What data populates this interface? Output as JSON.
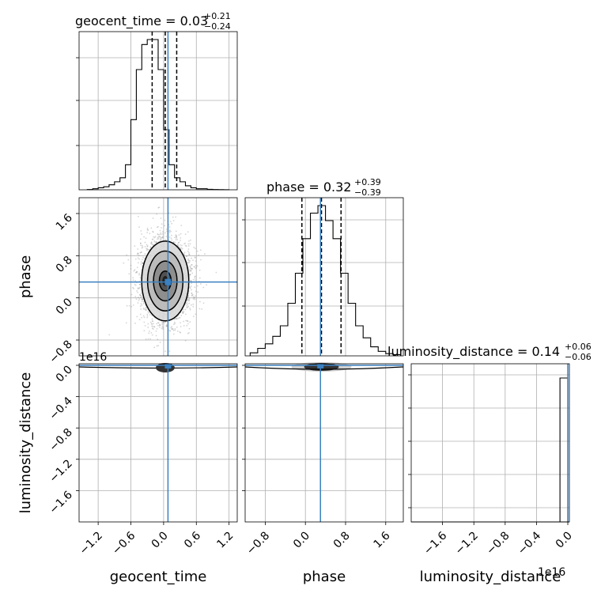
{
  "chart_data": {
    "type": "corner",
    "parameters": [
      "geocent_time",
      "phase",
      "luminosity_distance"
    ],
    "truth_color": "#3b80c0",
    "contour_color": "#000000",
    "grid": true,
    "panels": {
      "geocent_time": {
        "title": "geocent_time = 0.03",
        "title_plus": "+0.21",
        "title_minus": "−0.24",
        "xlabel": "geocent_time",
        "xlim": [
          -1.55,
          1.35
        ],
        "xticks": [
          "−1.2",
          "−0.6",
          "0.0",
          "0.6",
          "1.2"
        ],
        "xtick_values": [
          -1.2,
          -0.6,
          0.0,
          0.6,
          1.2
        ],
        "quantiles": [
          -0.21,
          0.03,
          0.24
        ],
        "truth": 0.08,
        "hist_bin_edges": [
          -1.4,
          -1.3,
          -1.2,
          -1.1,
          -1.0,
          -0.9,
          -0.8,
          -0.7,
          -0.6,
          -0.5,
          -0.4,
          -0.3,
          -0.2,
          -0.1,
          0.0,
          0.1,
          0.2,
          0.3,
          0.4,
          0.5,
          0.6,
          0.7,
          0.8,
          0.9,
          1.0,
          1.1,
          1.2
        ],
        "hist_counts": [
          0.003,
          0.01,
          0.02,
          0.03,
          0.05,
          0.08,
          0.12,
          0.25,
          0.7,
          1.2,
          1.45,
          1.5,
          1.5,
          1.2,
          0.6,
          0.25,
          0.12,
          0.08,
          0.04,
          0.02,
          0.01,
          0.01,
          0.005,
          0.003,
          0.002,
          0.001
        ]
      },
      "phase": {
        "title": "phase = 0.32",
        "title_plus": "+0.39",
        "title_minus": "−0.39",
        "xlabel": "phase",
        "ylabel": "phase",
        "xlim": [
          -1.2,
          1.95
        ],
        "xticks": [
          "−0.8",
          "0.0",
          "0.8",
          "1.6"
        ],
        "xtick_values": [
          -0.8,
          0.0,
          0.8,
          1.6
        ],
        "ylim": [
          -1.1,
          1.9
        ],
        "yticks": [
          "−0.8",
          "0.0",
          "0.8",
          "1.6"
        ],
        "ytick_values": [
          -0.8,
          0.0,
          0.8,
          1.6
        ],
        "quantiles": [
          -0.07,
          0.32,
          0.71
        ],
        "truth": 0.3,
        "hist_bin_edges": [
          -1.1,
          -0.95,
          -0.8,
          -0.65,
          -0.5,
          -0.35,
          -0.2,
          -0.05,
          0.1,
          0.25,
          0.4,
          0.55,
          0.7,
          0.85,
          1.0,
          1.15,
          1.3,
          1.45,
          1.6,
          1.75,
          1.9
        ],
        "hist_counts": [
          0.02,
          0.05,
          0.08,
          0.13,
          0.2,
          0.35,
          0.55,
          0.78,
          0.95,
          1.0,
          0.9,
          0.78,
          0.55,
          0.35,
          0.2,
          0.12,
          0.06,
          0.03,
          0.015,
          0.008
        ]
      },
      "luminosity_distance": {
        "title": "luminosity_distance = 0.14",
        "title_plus": "+0.06",
        "title_minus": "−0.06",
        "xlabel": "luminosity_distance",
        "ylabel": "luminosity_distance",
        "offset_text": "1e16",
        "xlim": [
          -2.0,
          0.02
        ],
        "xticks": [
          "−1.6",
          "−1.2",
          "−0.8",
          "−0.4",
          "0.0"
        ],
        "xtick_values": [
          -1.6,
          -1.2,
          -0.8,
          -0.4,
          0.0
        ],
        "ylim": [
          -2.0,
          0.02
        ],
        "yticks": [
          "0.0",
          "−0.4",
          "−0.8",
          "−1.2",
          "−1.6"
        ],
        "ytick_values": [
          0.0,
          -0.4,
          -0.8,
          -1.2,
          -1.6
        ],
        "truth": 0.0
      }
    },
    "contour_sigma_levels": [
      0.5,
      1.0,
      1.5,
      2.0
    ]
  }
}
